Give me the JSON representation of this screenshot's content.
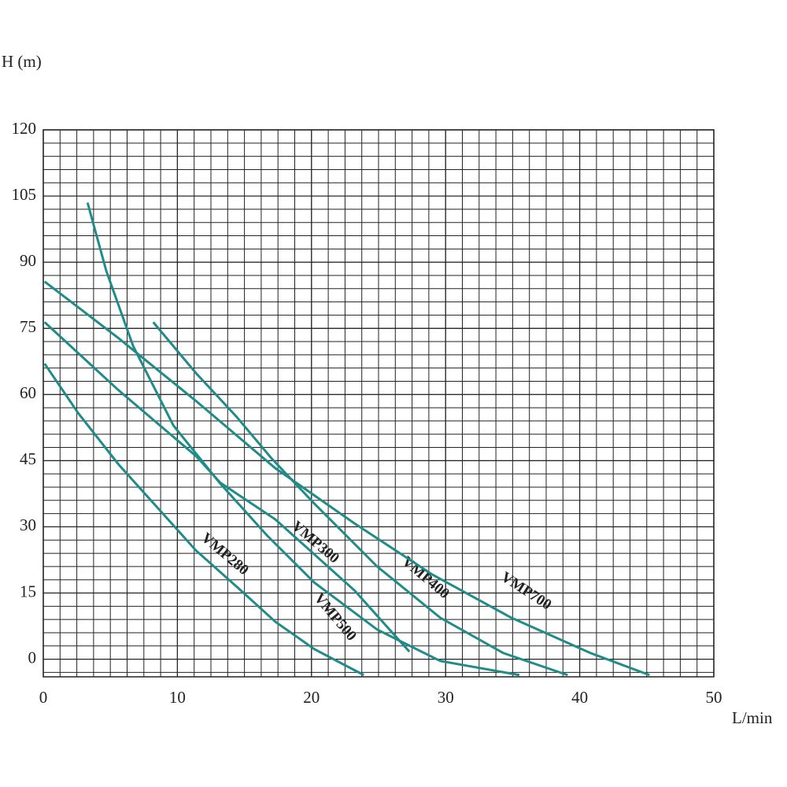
{
  "chart_data": {
    "type": "line",
    "x_label": "L/min",
    "y_label": "H (m)",
    "xlim": [
      0,
      50
    ],
    "xticks": [
      0,
      10,
      20,
      30,
      40,
      50
    ],
    "ylim": [
      -4,
      120
    ],
    "yticks": [
      0,
      15,
      30,
      45,
      60,
      75,
      90,
      105,
      120
    ],
    "grid": true,
    "series": [
      {
        "name": "VMP280",
        "color": "#1f8c8a",
        "x": [
          0.1,
          2.6,
          5.6,
          8.5,
          11.4,
          14.4,
          17.3,
          20.2,
          23.9
        ],
        "values": [
          67,
          55.8,
          44.2,
          34.4,
          24.6,
          16.5,
          8.5,
          2.3,
          -3.6
        ]
      },
      {
        "name": "VMP300",
        "color": "#1f8c8a",
        "x": [
          0.1,
          5.6,
          11.4,
          13.2,
          17.3,
          23.2,
          27.3
        ],
        "values": [
          76.4,
          61,
          46,
          40,
          31.7,
          15.6,
          1.7
        ]
      },
      {
        "name": "VMP500",
        "color": "#1f8c8a",
        "x": [
          3.3,
          4.7,
          6.7,
          9.7,
          13.2,
          16.7,
          20.2,
          24.9,
          29.6,
          35.5
        ],
        "values": [
          103.5,
          88,
          71,
          53,
          39.8,
          28,
          17.4,
          6.7,
          -0.4,
          -3.6
        ]
      },
      {
        "name": "VMP400",
        "color": "#1f8c8a",
        "x": [
          8.2,
          11.4,
          14.4,
          17,
          20.2,
          24.9,
          29.6,
          34.3,
          39.1
        ],
        "values": [
          76.4,
          64.8,
          55,
          45.6,
          35.3,
          21,
          9.4,
          1.4,
          -3.6
        ]
      },
      {
        "name": "VMP700",
        "color": "#1f8c8a",
        "x": [
          0.1,
          5.6,
          11.4,
          17.3,
          23.2,
          29,
          34.9,
          40.8,
          45.2
        ],
        "values": [
          85.6,
          72.8,
          58.5,
          43.3,
          30.8,
          19.2,
          9.4,
          1.4,
          -3.6
        ]
      }
    ]
  }
}
